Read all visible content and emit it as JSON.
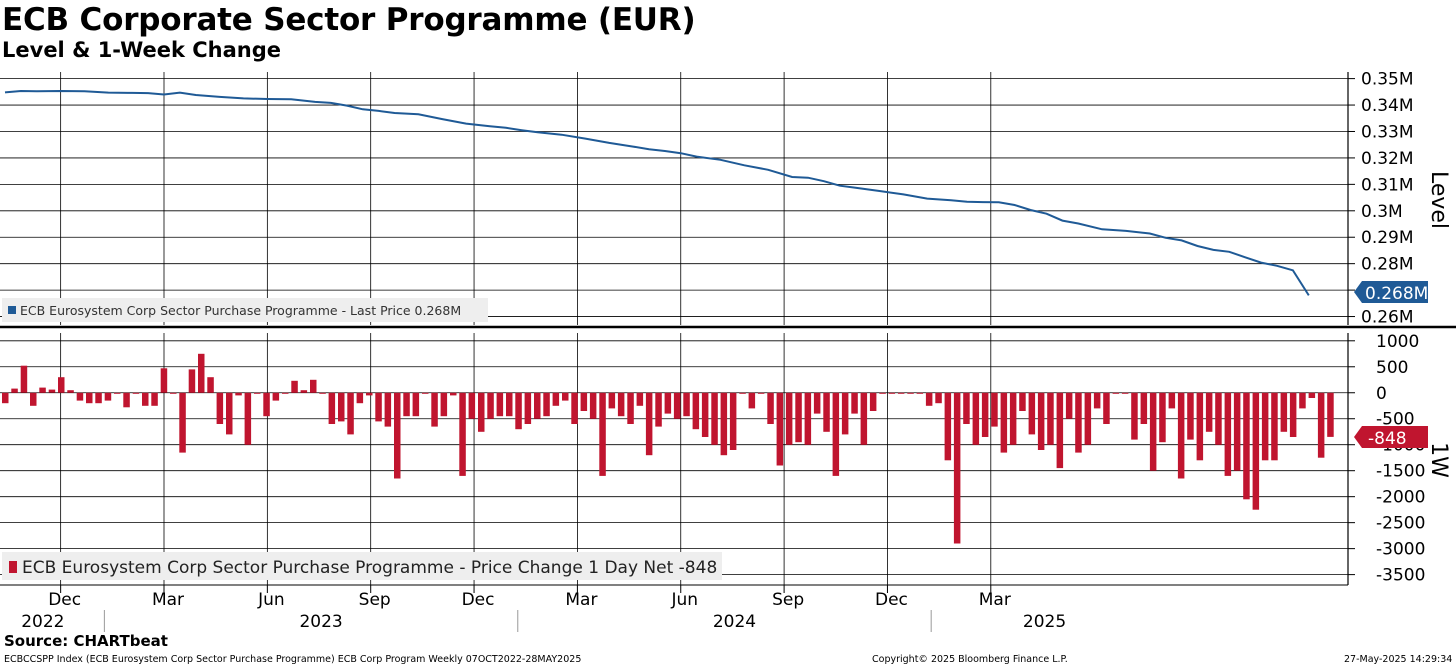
{
  "title": "ECB Corporate Sector Programme (EUR)",
  "subtitle": "Level & 1-Week Change",
  "source": "Source: CHARTbeat",
  "footer": {
    "left": "ECBCCSPP Index (ECB Eurosystem Corp Sector Purchase Programme) ECB Corp Program  Weekly 07OCT2022-28MAY2025",
    "center": "Copyright© 2025 Bloomberg Finance L.P.",
    "right": "27-May-2025 14:29:34"
  },
  "colors": {
    "line": "#1f5a96",
    "bar": "#c0152f",
    "grid": "#000000"
  },
  "chart_data": [
    {
      "type": "line",
      "name": "level",
      "axis_label": "Level",
      "legend": "ECB Eurosystem Corp Sector Purchase Programme - Last Price 0.268M",
      "last_value_label": "0.268M",
      "ylim": [
        0.2568,
        0.3525
      ],
      "yticks": [
        0.26,
        0.27,
        0.28,
        0.29,
        0.3,
        0.31,
        0.32,
        0.33,
        0.34,
        0.35
      ],
      "ytick_labels": [
        "0.26M",
        "",
        "0.28M",
        "0.29M",
        "0.3M",
        "0.31M",
        "0.32M",
        "0.33M",
        "0.34M",
        "0.35M"
      ],
      "series": [
        {
          "name": "ECB Eurosystem Corp Sector Purchase Programme - Last Price",
          "x_week": [
            0,
            2,
            4,
            7,
            10,
            13,
            16,
            18,
            20,
            22,
            24,
            27,
            30,
            33,
            36,
            39,
            41,
            43,
            45,
            47,
            49,
            52,
            55,
            58,
            61,
            63,
            65,
            67,
            70,
            73,
            76,
            79,
            81,
            83,
            85,
            87,
            90,
            93,
            96,
            99,
            101,
            103,
            105,
            107,
            110,
            113,
            116,
            119,
            121,
            123,
            125,
            127,
            129,
            131,
            133,
            135,
            138,
            141,
            144,
            146,
            148,
            150,
            152,
            154,
            156,
            158,
            160,
            162,
            164
          ],
          "values": [
            0.3448,
            0.3453,
            0.3452,
            0.3453,
            0.3452,
            0.3447,
            0.3446,
            0.3445,
            0.344,
            0.3447,
            0.3438,
            0.3431,
            0.3425,
            0.3423,
            0.3422,
            0.3412,
            0.3408,
            0.3398,
            0.3384,
            0.3378,
            0.337,
            0.3365,
            0.3347,
            0.333,
            0.332,
            0.3314,
            0.3305,
            0.3297,
            0.3288,
            0.3273,
            0.3257,
            0.3243,
            0.3233,
            0.3226,
            0.3218,
            0.3205,
            0.3193,
            0.3172,
            0.3155,
            0.3128,
            0.3125,
            0.3112,
            0.3095,
            0.3087,
            0.3075,
            0.3062,
            0.3046,
            0.304,
            0.3034,
            0.3033,
            0.3032,
            0.3022,
            0.3003,
            0.2989,
            0.2963,
            0.2952,
            0.293,
            0.2924,
            0.2914,
            0.2898,
            0.2888,
            0.2867,
            0.2852,
            0.2845,
            0.2824,
            0.2804,
            0.2792,
            0.2775,
            0.268
          ]
        }
      ]
    },
    {
      "type": "bar",
      "name": "1-week change",
      "axis_label": "1W",
      "legend": "ECB Eurosystem Corp Sector Purchase Programme - Price Change 1 Day Net -848",
      "last_value_label": "-848",
      "ylim": [
        -3700,
        1150
      ],
      "yticks": [
        1000,
        500,
        0,
        -500,
        -1000,
        -1500,
        -2000,
        -2500,
        -3000,
        -3500
      ],
      "ytick_labels": [
        "1000",
        "500",
        "0",
        "-500",
        "-1000",
        "-1500",
        "-2000",
        "-2500",
        "-3000",
        "-3500"
      ],
      "values": [
        -200,
        80,
        520,
        -250,
        100,
        60,
        300,
        50,
        -150,
        -200,
        -200,
        -150,
        0,
        -280,
        0,
        -250,
        -250,
        470,
        0,
        -1150,
        450,
        750,
        300,
        -600,
        -800,
        -50,
        -1000,
        0,
        -450,
        -150,
        0,
        230,
        50,
        250,
        0,
        -600,
        -550,
        -800,
        -200,
        -50,
        -550,
        -650,
        -1650,
        -450,
        -450,
        0,
        -650,
        -450,
        -50,
        -1600,
        -500,
        -750,
        -500,
        -450,
        -450,
        -700,
        -600,
        -500,
        -450,
        -250,
        -150,
        -600,
        -350,
        -500,
        -1600,
        -300,
        -450,
        -600,
        -250,
        -1200,
        -650,
        -400,
        -500,
        -450,
        -700,
        -850,
        -1000,
        -1200,
        -1100,
        0,
        -300,
        0,
        -600,
        -1400,
        -1000,
        -950,
        -1000,
        -400,
        -750,
        -1600,
        -800,
        -400,
        -1000,
        -350,
        0,
        0,
        0,
        0,
        0,
        -250,
        -200,
        -1300,
        -2900,
        -600,
        -1000,
        -850,
        -650,
        -1150,
        -1000,
        -350,
        -800,
        -1100,
        -1000,
        -1450,
        -500,
        -1150,
        -1000,
        -300,
        -600,
        0,
        0,
        -900,
        -600,
        -1500,
        -950,
        -300,
        -1650,
        -900,
        -1300,
        -750,
        -1000,
        -1600,
        -1500,
        -2050,
        -2250,
        -1300,
        -1300,
        -750,
        -850,
        -300,
        -100,
        -1250,
        -848
      ],
      "x_week_start": 0,
      "x_week_step": 1.1739
    }
  ],
  "x_axis": {
    "months": [
      {
        "label": "Dec",
        "week": 7
      },
      {
        "label": "Mar",
        "week": 20
      },
      {
        "label": "Jun",
        "week": 33
      },
      {
        "label": "Sep",
        "week": 46
      },
      {
        "label": "Dec",
        "week": 59
      },
      {
        "label": "Mar",
        "week": 72
      },
      {
        "label": "Jun",
        "week": 85
      },
      {
        "label": "Sep",
        "week": 98
      },
      {
        "label": "Dec",
        "week": 111
      },
      {
        "label": "Mar",
        "week": 124
      }
    ],
    "years": [
      {
        "label": "2022",
        "week": 3
      },
      {
        "label": "2023",
        "week": 38
      },
      {
        "label": "2024",
        "week": 90
      },
      {
        "label": "2025",
        "week": 129
      }
    ],
    "year_separators_week": [
      12.5,
      64.5,
      116.5
    ]
  }
}
